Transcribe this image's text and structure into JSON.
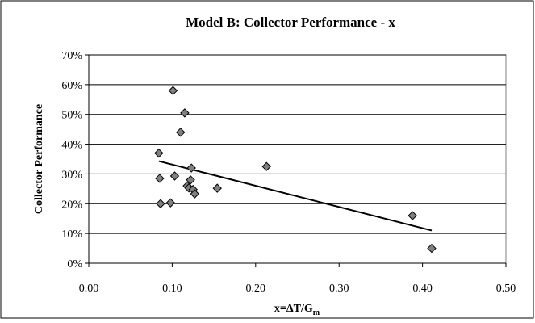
{
  "chart_data": {
    "type": "scatter",
    "title": "Model B:  Collector Performance - x",
    "xlabel": "x=ΔT/G",
    "xlabel_subscript": "m",
    "ylabel": "Collector Performance",
    "xlim": [
      0.0,
      0.5
    ],
    "ylim": [
      0,
      70
    ],
    "x_ticks": [
      "0.00",
      "0.10",
      "0.20",
      "0.30",
      "0.40",
      "0.50"
    ],
    "x_tick_values": [
      0.0,
      0.1,
      0.2,
      0.3,
      0.4,
      0.5
    ],
    "y_ticks": [
      "0%",
      "10%",
      "20%",
      "30%",
      "40%",
      "50%",
      "60%",
      "70%"
    ],
    "y_tick_values": [
      0,
      10,
      20,
      30,
      40,
      50,
      60,
      70
    ],
    "grid": "horizontal",
    "legend": "none",
    "series": [
      {
        "marker": "diamond",
        "color": "#808080",
        "points": [
          {
            "x": 0.084,
            "y": 37.0
          },
          {
            "x": 0.085,
            "y": 28.5
          },
          {
            "x": 0.086,
            "y": 20.0
          },
          {
            "x": 0.098,
            "y": 20.3
          },
          {
            "x": 0.101,
            "y": 58.0
          },
          {
            "x": 0.103,
            "y": 29.3
          },
          {
            "x": 0.11,
            "y": 44.0
          },
          {
            "x": 0.115,
            "y": 50.5
          },
          {
            "x": 0.118,
            "y": 26.0
          },
          {
            "x": 0.12,
            "y": 25.3
          },
          {
            "x": 0.122,
            "y": 28.0
          },
          {
            "x": 0.123,
            "y": 32.0
          },
          {
            "x": 0.125,
            "y": 24.8
          },
          {
            "x": 0.127,
            "y": 23.3
          },
          {
            "x": 0.154,
            "y": 25.2
          },
          {
            "x": 0.213,
            "y": 32.5
          },
          {
            "x": 0.388,
            "y": 16.0
          },
          {
            "x": 0.411,
            "y": 5.0
          }
        ]
      }
    ],
    "trendline": {
      "type": "linear",
      "color": "#000000",
      "x": [
        0.084,
        0.411
      ],
      "y": [
        34.3,
        11.0
      ]
    }
  }
}
